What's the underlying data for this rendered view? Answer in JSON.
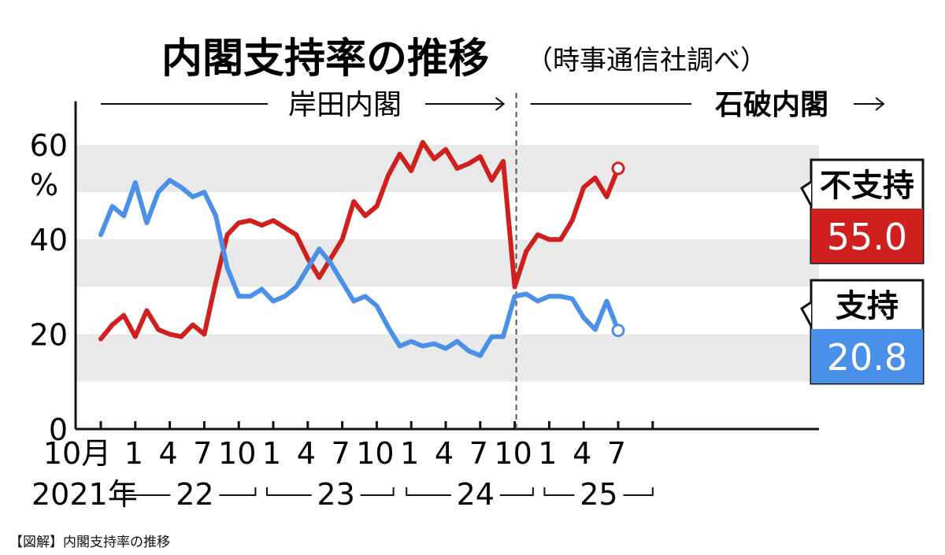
{
  "caption": "【図解】内閣支持率の推移",
  "chart_data": {
    "type": "line",
    "title": "内閣支持率の推移",
    "subtitle": "（時事通信社調べ）",
    "ylabel": "%",
    "ylim": [
      0,
      70
    ],
    "y_ticks": [
      "0",
      "20",
      "40",
      "60"
    ],
    "x_tick_labels": [
      "10月",
      "1",
      "4",
      "7",
      "10",
      "1",
      "4",
      "7",
      "10",
      "1",
      "4",
      "7",
      "10",
      "1",
      "4",
      "7"
    ],
    "year_labels": [
      "2021年",
      "22",
      "23",
      "24",
      "25"
    ],
    "eras": [
      {
        "name": "岸田内閣"
      },
      {
        "name": "石破内閣"
      }
    ],
    "x": [
      "2021-10",
      "2021-11",
      "2021-12",
      "2022-01",
      "2022-02",
      "2022-03",
      "2022-04",
      "2022-05",
      "2022-06",
      "2022-07",
      "2022-08",
      "2022-09",
      "2022-10",
      "2022-11",
      "2022-12",
      "2023-01",
      "2023-02",
      "2023-03",
      "2023-04",
      "2023-05",
      "2023-06",
      "2023-07",
      "2023-08",
      "2023-09",
      "2023-10",
      "2023-11",
      "2023-12",
      "2024-01",
      "2024-02",
      "2024-03",
      "2024-04",
      "2024-05",
      "2024-06",
      "2024-07",
      "2024-08",
      "2024-09",
      "2024-10",
      "2024-11",
      "2024-12",
      "2025-01",
      "2025-02",
      "2025-03",
      "2025-04",
      "2025-05",
      "2025-06",
      "2025-07"
    ],
    "series": [
      {
        "name": "不支持",
        "color": "#d0201e",
        "latest": "55.0",
        "values": [
          19,
          22,
          24,
          19.5,
          25,
          21,
          20,
          19.5,
          22,
          20,
          31,
          41,
          43.5,
          44,
          43,
          44,
          42.5,
          41,
          36,
          32,
          36,
          40,
          48,
          45,
          47,
          53.5,
          58,
          54.5,
          60.5,
          57,
          59,
          55,
          56,
          57.5,
          52.5,
          56.5,
          30,
          37.5,
          41,
          40,
          40,
          44,
          51,
          53,
          49,
          55
        ]
      },
      {
        "name": "支持",
        "color": "#4a8fe8",
        "latest": "20.8",
        "values": [
          41,
          47,
          45,
          52,
          43.5,
          50,
          52.5,
          51,
          49,
          50,
          45,
          34,
          28,
          28,
          29.5,
          27,
          28,
          30,
          34,
          38,
          35,
          31,
          27,
          28,
          26,
          21.5,
          17.5,
          18.5,
          17.5,
          18,
          17,
          18.5,
          16.5,
          15.5,
          19.5,
          19.5,
          28,
          28.5,
          27,
          28,
          28,
          27.5,
          23.5,
          21,
          27,
          20.8
        ]
      }
    ]
  }
}
